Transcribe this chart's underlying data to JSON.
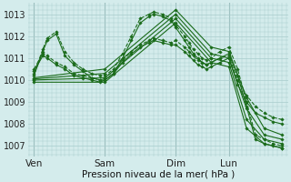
{
  "background_color": "#d4ecec",
  "grid_color": "#a8cccc",
  "line_color": "#1a6b1a",
  "marker_color": "#1a6b1a",
  "xlabel": "Pression niveau de la mer( hPa )",
  "ylim": [
    1006.5,
    1013.5
  ],
  "yticks": [
    1007,
    1008,
    1009,
    1010,
    1011,
    1012,
    1013
  ],
  "xtick_labels": [
    "Ven",
    "Sam",
    "Dim",
    "Lun"
  ],
  "xtick_positions": [
    0,
    96,
    192,
    264
  ],
  "total_hours": 336,
  "lines": [
    {
      "x": [
        0,
        12,
        18,
        30,
        42,
        54,
        66,
        78,
        90,
        96,
        108,
        120,
        132,
        144,
        156,
        162,
        174,
        186,
        192,
        204,
        210,
        216,
        222,
        228,
        234,
        240,
        252,
        264,
        276,
        288,
        300,
        312,
        324,
        336
      ],
      "y": [
        1010.3,
        1011.4,
        1011.9,
        1012.2,
        1011.3,
        1010.8,
        1010.5,
        1010.3,
        1010.2,
        1010.2,
        1010.5,
        1011.2,
        1012.0,
        1012.8,
        1013.0,
        1013.1,
        1013.0,
        1012.8,
        1012.5,
        1012.0,
        1011.7,
        1011.4,
        1011.2,
        1011.0,
        1010.9,
        1011.0,
        1011.3,
        1011.5,
        1010.5,
        1009.0,
        1007.5,
        1007.3,
        1007.1,
        1007.0
      ],
      "dashed": true
    },
    {
      "x": [
        0,
        12,
        18,
        30,
        42,
        54,
        66,
        78,
        90,
        96,
        108,
        120,
        132,
        144,
        156,
        162,
        174,
        186,
        192,
        204,
        210,
        216,
        222,
        228,
        234,
        240,
        252,
        264,
        276,
        288,
        300,
        312,
        324,
        336
      ],
      "y": [
        1010.2,
        1011.3,
        1011.8,
        1012.1,
        1011.1,
        1010.7,
        1010.4,
        1010.1,
        1010.0,
        1010.0,
        1010.3,
        1011.0,
        1011.8,
        1012.6,
        1012.9,
        1013.0,
        1012.9,
        1012.7,
        1012.4,
        1011.8,
        1011.5,
        1011.2,
        1011.0,
        1010.8,
        1010.7,
        1010.8,
        1011.0,
        1011.2,
        1010.2,
        1008.8,
        1007.3,
        1007.1,
        1007.0,
        1006.9
      ],
      "dashed": false
    },
    {
      "x": [
        0,
        96,
        192,
        240,
        264,
        288,
        312,
        336
      ],
      "y": [
        1010.1,
        1010.5,
        1013.2,
        1011.5,
        1011.3,
        1009.2,
        1007.8,
        1007.5
      ],
      "dashed": false
    },
    {
      "x": [
        0,
        96,
        192,
        240,
        264,
        288,
        312,
        336
      ],
      "y": [
        1010.05,
        1010.3,
        1013.0,
        1011.2,
        1011.0,
        1008.7,
        1007.5,
        1007.3
      ],
      "dashed": false
    },
    {
      "x": [
        0,
        96,
        192,
        240,
        264,
        288,
        312,
        336
      ],
      "y": [
        1010.0,
        1010.1,
        1012.8,
        1011.0,
        1010.8,
        1008.2,
        1007.3,
        1007.1
      ],
      "dashed": false
    },
    {
      "x": [
        0,
        96,
        192,
        240,
        264,
        288,
        312,
        336
      ],
      "y": [
        1009.9,
        1009.9,
        1012.6,
        1010.8,
        1010.6,
        1007.8,
        1007.1,
        1006.9
      ],
      "dashed": false
    },
    {
      "x": [
        0,
        12,
        18,
        30,
        42,
        54,
        66,
        78,
        90,
        96,
        108,
        120,
        132,
        144,
        156,
        162,
        174,
        186,
        192,
        204,
        210,
        216,
        222,
        228,
        234,
        240,
        252,
        264,
        276,
        288,
        300,
        312,
        324,
        336
      ],
      "y": [
        1010.5,
        1011.2,
        1011.1,
        1010.8,
        1010.6,
        1010.3,
        1010.2,
        1010.1,
        1010.0,
        1010.1,
        1010.4,
        1010.9,
        1011.3,
        1011.6,
        1011.8,
        1011.9,
        1011.8,
        1011.7,
        1011.8,
        1011.5,
        1011.3,
        1011.1,
        1010.9,
        1010.8,
        1010.7,
        1010.8,
        1011.0,
        1011.1,
        1010.0,
        1009.3,
        1008.8,
        1008.5,
        1008.3,
        1008.2
      ],
      "dashed": true
    },
    {
      "x": [
        0,
        12,
        18,
        30,
        42,
        54,
        66,
        78,
        90,
        96,
        108,
        120,
        132,
        144,
        156,
        162,
        174,
        186,
        192,
        204,
        210,
        216,
        222,
        228,
        234,
        240,
        252,
        264,
        276,
        288,
        300,
        312,
        324,
        336
      ],
      "y": [
        1010.4,
        1011.1,
        1011.0,
        1010.7,
        1010.5,
        1010.2,
        1010.1,
        1010.0,
        1009.9,
        1010.0,
        1010.3,
        1010.8,
        1011.2,
        1011.5,
        1011.7,
        1011.8,
        1011.7,
        1011.6,
        1011.6,
        1011.3,
        1011.1,
        1010.9,
        1010.7,
        1010.6,
        1010.5,
        1010.6,
        1010.8,
        1011.0,
        1009.8,
        1009.0,
        1008.5,
        1008.3,
        1008.1,
        1008.0
      ],
      "dashed": false
    }
  ]
}
